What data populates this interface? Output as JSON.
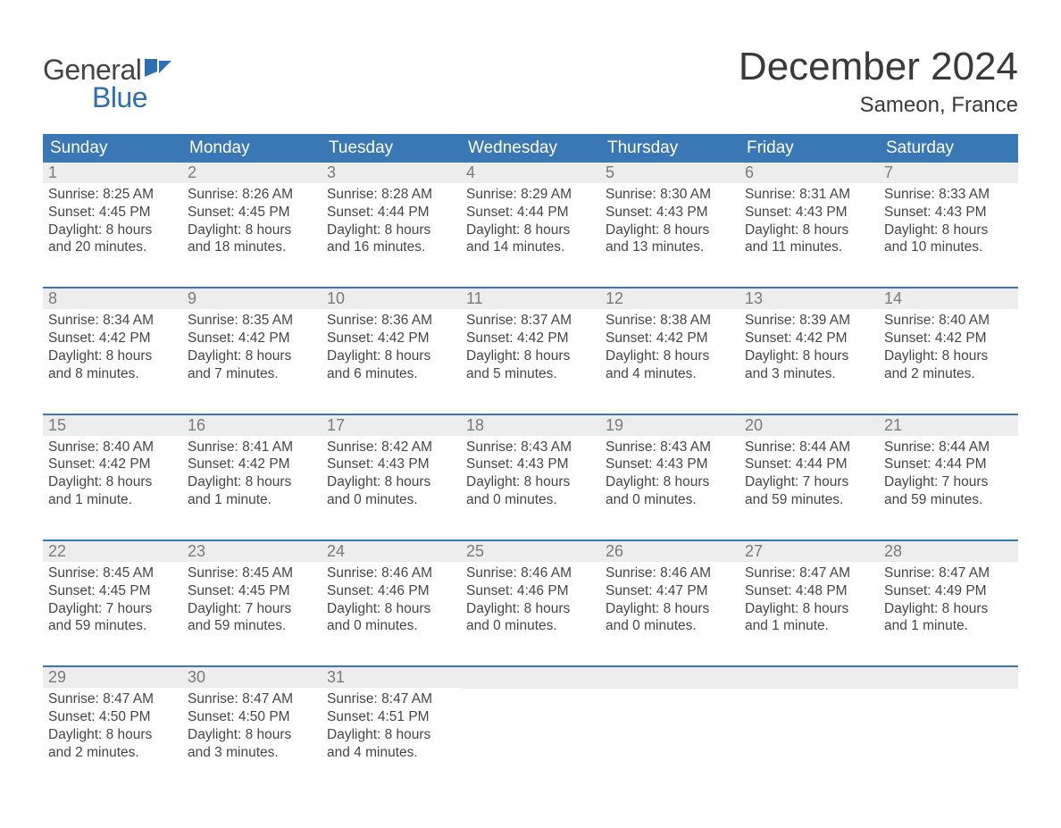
{
  "logo": {
    "word1": "General",
    "word2": "Blue",
    "accent_color": "#2f6fb0"
  },
  "title": "December 2024",
  "location": "Sameon, France",
  "colors": {
    "header_bg": "#3a78b5",
    "header_text": "#ffffff",
    "daynum_bg": "#ededed",
    "daynum_text": "#7a7a7a",
    "body_text": "#464646",
    "rule": "#3a78b5",
    "page_bg": "#ffffff"
  },
  "day_headers": [
    "Sunday",
    "Monday",
    "Tuesday",
    "Wednesday",
    "Thursday",
    "Friday",
    "Saturday"
  ],
  "weeks": [
    [
      {
        "n": "1",
        "sunrise": "8:25 AM",
        "sunset": "4:45 PM",
        "daylight": "8 hours and 20 minutes."
      },
      {
        "n": "2",
        "sunrise": "8:26 AM",
        "sunset": "4:45 PM",
        "daylight": "8 hours and 18 minutes."
      },
      {
        "n": "3",
        "sunrise": "8:28 AM",
        "sunset": "4:44 PM",
        "daylight": "8 hours and 16 minutes."
      },
      {
        "n": "4",
        "sunrise": "8:29 AM",
        "sunset": "4:44 PM",
        "daylight": "8 hours and 14 minutes."
      },
      {
        "n": "5",
        "sunrise": "8:30 AM",
        "sunset": "4:43 PM",
        "daylight": "8 hours and 13 minutes."
      },
      {
        "n": "6",
        "sunrise": "8:31 AM",
        "sunset": "4:43 PM",
        "daylight": "8 hours and 11 minutes."
      },
      {
        "n": "7",
        "sunrise": "8:33 AM",
        "sunset": "4:43 PM",
        "daylight": "8 hours and 10 minutes."
      }
    ],
    [
      {
        "n": "8",
        "sunrise": "8:34 AM",
        "sunset": "4:42 PM",
        "daylight": "8 hours and 8 minutes."
      },
      {
        "n": "9",
        "sunrise": "8:35 AM",
        "sunset": "4:42 PM",
        "daylight": "8 hours and 7 minutes."
      },
      {
        "n": "10",
        "sunrise": "8:36 AM",
        "sunset": "4:42 PM",
        "daylight": "8 hours and 6 minutes."
      },
      {
        "n": "11",
        "sunrise": "8:37 AM",
        "sunset": "4:42 PM",
        "daylight": "8 hours and 5 minutes."
      },
      {
        "n": "12",
        "sunrise": "8:38 AM",
        "sunset": "4:42 PM",
        "daylight": "8 hours and 4 minutes."
      },
      {
        "n": "13",
        "sunrise": "8:39 AM",
        "sunset": "4:42 PM",
        "daylight": "8 hours and 3 minutes."
      },
      {
        "n": "14",
        "sunrise": "8:40 AM",
        "sunset": "4:42 PM",
        "daylight": "8 hours and 2 minutes."
      }
    ],
    [
      {
        "n": "15",
        "sunrise": "8:40 AM",
        "sunset": "4:42 PM",
        "daylight": "8 hours and 1 minute."
      },
      {
        "n": "16",
        "sunrise": "8:41 AM",
        "sunset": "4:42 PM",
        "daylight": "8 hours and 1 minute."
      },
      {
        "n": "17",
        "sunrise": "8:42 AM",
        "sunset": "4:43 PM",
        "daylight": "8 hours and 0 minutes."
      },
      {
        "n": "18",
        "sunrise": "8:43 AM",
        "sunset": "4:43 PM",
        "daylight": "8 hours and 0 minutes."
      },
      {
        "n": "19",
        "sunrise": "8:43 AM",
        "sunset": "4:43 PM",
        "daylight": "8 hours and 0 minutes."
      },
      {
        "n": "20",
        "sunrise": "8:44 AM",
        "sunset": "4:44 PM",
        "daylight": "7 hours and 59 minutes."
      },
      {
        "n": "21",
        "sunrise": "8:44 AM",
        "sunset": "4:44 PM",
        "daylight": "7 hours and 59 minutes."
      }
    ],
    [
      {
        "n": "22",
        "sunrise": "8:45 AM",
        "sunset": "4:45 PM",
        "daylight": "7 hours and 59 minutes."
      },
      {
        "n": "23",
        "sunrise": "8:45 AM",
        "sunset": "4:45 PM",
        "daylight": "7 hours and 59 minutes."
      },
      {
        "n": "24",
        "sunrise": "8:46 AM",
        "sunset": "4:46 PM",
        "daylight": "8 hours and 0 minutes."
      },
      {
        "n": "25",
        "sunrise": "8:46 AM",
        "sunset": "4:46 PM",
        "daylight": "8 hours and 0 minutes."
      },
      {
        "n": "26",
        "sunrise": "8:46 AM",
        "sunset": "4:47 PM",
        "daylight": "8 hours and 0 minutes."
      },
      {
        "n": "27",
        "sunrise": "8:47 AM",
        "sunset": "4:48 PM",
        "daylight": "8 hours and 1 minute."
      },
      {
        "n": "28",
        "sunrise": "8:47 AM",
        "sunset": "4:49 PM",
        "daylight": "8 hours and 1 minute."
      }
    ],
    [
      {
        "n": "29",
        "sunrise": "8:47 AM",
        "sunset": "4:50 PM",
        "daylight": "8 hours and 2 minutes."
      },
      {
        "n": "30",
        "sunrise": "8:47 AM",
        "sunset": "4:50 PM",
        "daylight": "8 hours and 3 minutes."
      },
      {
        "n": "31",
        "sunrise": "8:47 AM",
        "sunset": "4:51 PM",
        "daylight": "8 hours and 4 minutes."
      },
      null,
      null,
      null,
      null
    ]
  ]
}
